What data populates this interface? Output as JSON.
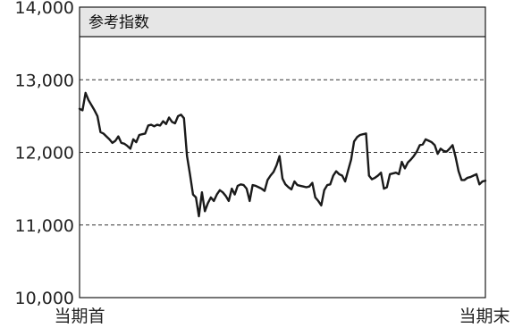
{
  "chart_data": {
    "type": "line",
    "title": "参考指数",
    "xlabel": "",
    "ylabel": "",
    "ylim": [
      10000,
      14000
    ],
    "yticks": [
      10000,
      11000,
      12000,
      13000,
      14000
    ],
    "ytick_labels": [
      "10,000",
      "11,000",
      "12,000",
      "13,000",
      "14,000"
    ],
    "x_start_label": "当期首",
    "x_end_label": "当期末",
    "grid": "dashed horizontal",
    "line_color": "#1a1a1a",
    "title_band_color": "#e6e6e6",
    "series": [
      {
        "values": [
          12600,
          12580,
          12820,
          12720,
          12650,
          12580,
          12500,
          12280,
          12260,
          12220,
          12180,
          12130,
          12160,
          12220,
          12130,
          12120,
          12090,
          12050,
          12180,
          12140,
          12240,
          12250,
          12260,
          12370,
          12380,
          12360,
          12380,
          12370,
          12430,
          12390,
          12480,
          12420,
          12400,
          12500,
          12520,
          12470,
          11950,
          11700,
          11420,
          11380,
          11120,
          11450,
          11190,
          11300,
          11380,
          11330,
          11420,
          11480,
          11450,
          11400,
          11330,
          11500,
          11420,
          11540,
          11560,
          11550,
          11500,
          11330,
          11550,
          11540,
          11520,
          11500,
          11470,
          11620,
          11680,
          11730,
          11820,
          11950,
          11640,
          11560,
          11520,
          11490,
          11600,
          11550,
          11540,
          11530,
          11520,
          11530,
          11580,
          11380,
          11330,
          11270,
          11480,
          11550,
          11560,
          11680,
          11740,
          11700,
          11680,
          11600,
          11750,
          11900,
          12150,
          12210,
          12240,
          12250,
          12260,
          11680,
          11630,
          11650,
          11680,
          11720,
          11500,
          11520,
          11700,
          11710,
          11720,
          11700,
          11870,
          11780,
          11860,
          11900,
          11950,
          12010,
          12100,
          12110,
          12180,
          12160,
          12140,
          12100,
          11980,
          12050,
          12020,
          12010,
          12050,
          12100,
          11940,
          11740,
          11620,
          11620,
          11650,
          11660,
          11680,
          11700,
          11560,
          11600,
          11610
        ]
      }
    ]
  }
}
